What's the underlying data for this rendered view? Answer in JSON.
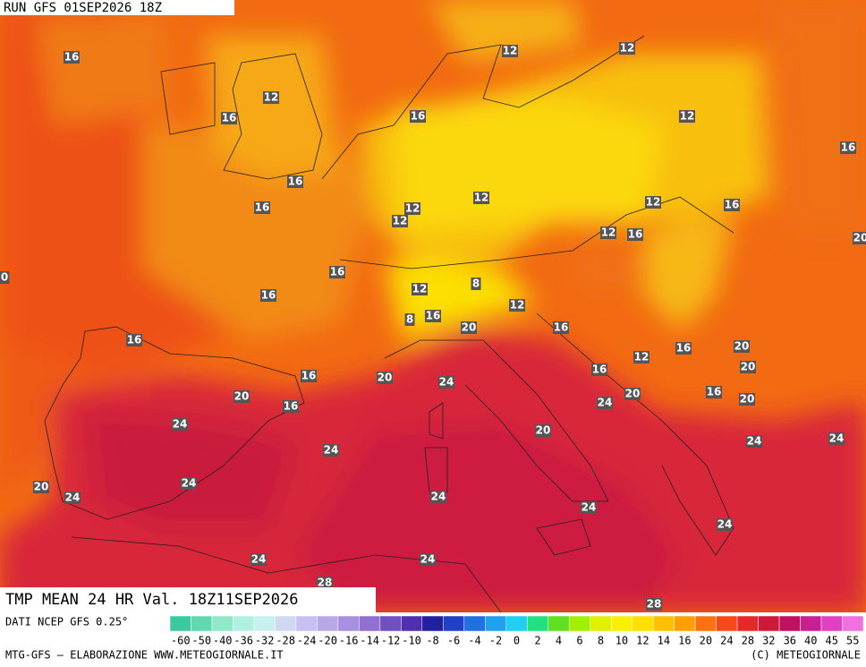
{
  "header": {
    "run": "RUN GFS 01SEP2026 18Z"
  },
  "map": {
    "labels": [
      "16",
      "12",
      "16",
      "16",
      "12",
      "12",
      "12",
      "16",
      "16",
      "16",
      "12",
      "12",
      "12",
      "12",
      "16",
      "12",
      "16",
      "20",
      "0",
      "16",
      "16",
      "12",
      "8",
      "12",
      "8",
      "16",
      "20",
      "16",
      "16",
      "16",
      "20",
      "12",
      "16",
      "20",
      "16",
      "20",
      "24",
      "20",
      "16",
      "20",
      "20",
      "16",
      "24",
      "24",
      "24",
      "20",
      "24",
      "24",
      "20",
      "24",
      "24",
      "24",
      "24",
      "24",
      "24",
      "24",
      "28",
      "28"
    ]
  },
  "footer": {
    "title": "TMP MEAN 24 HR Val. 18Z11SEP2026",
    "source": "DATI NCEP GFS 0.25°",
    "credit": "MTG-GFS — ELABORAZIONE WWW.METEOGIORNALE.IT",
    "copyright": "(C) METEOGIORNALE"
  },
  "legend": {
    "labels": [
      "-60",
      "-50",
      "-40",
      "-36",
      "-32",
      "-28",
      "-24",
      "-20",
      "-16",
      "-14",
      "-12",
      "-10",
      "-8",
      "-6",
      "-4",
      "-2",
      "0",
      "2",
      "4",
      "6",
      "8",
      "10",
      "12",
      "14",
      "16",
      "20",
      "24",
      "28",
      "32",
      "36",
      "40",
      "45",
      "55"
    ]
  }
}
